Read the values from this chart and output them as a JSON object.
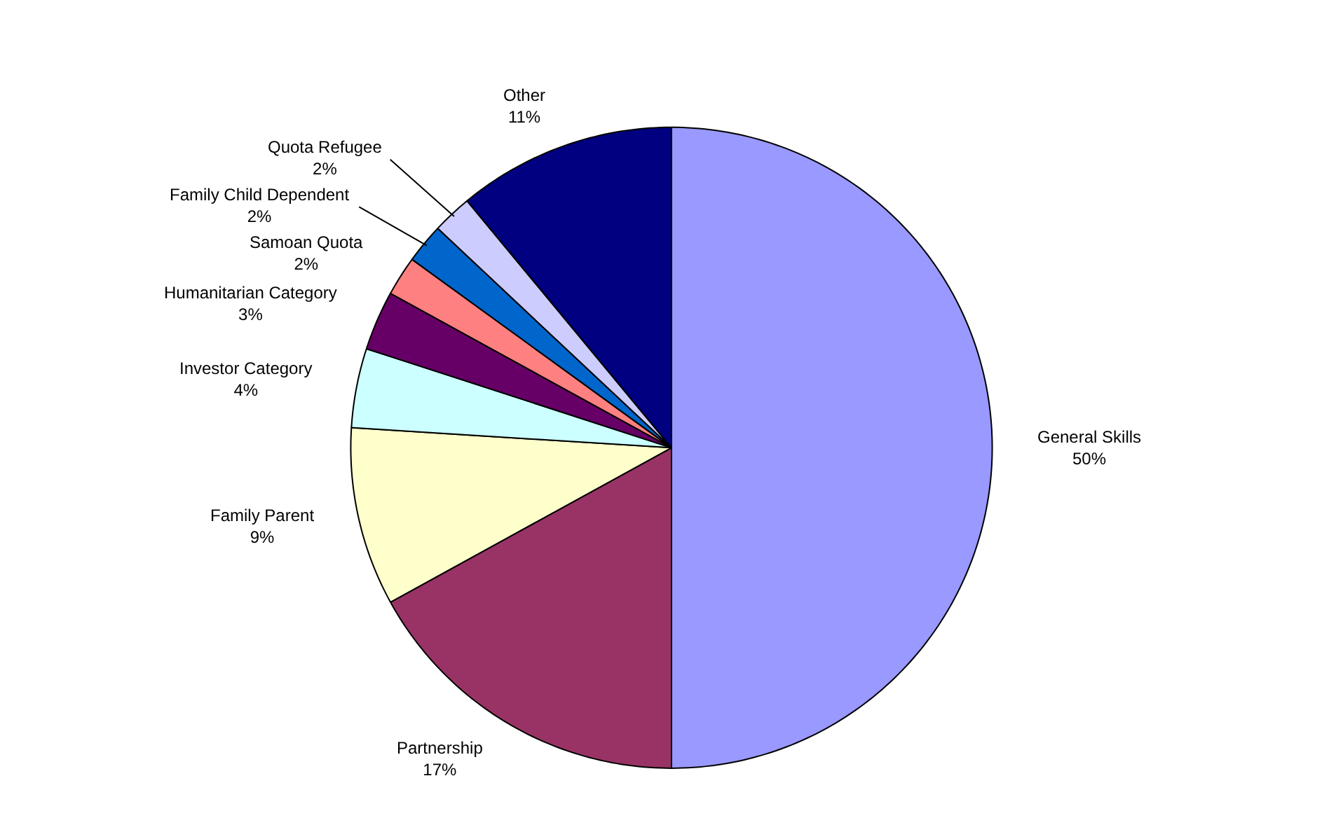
{
  "chart_data": {
    "type": "pie",
    "categories": [
      "General Skills",
      "Partnership",
      "Family Parent",
      "Investor Category",
      "Humanitarian Category",
      "Samoan Quota",
      "Family Child Dependent",
      "Quota Refugee",
      "Other"
    ],
    "values": [
      50,
      17,
      9,
      4,
      3,
      2,
      2,
      2,
      11
    ],
    "value_labels": [
      "50%",
      "17%",
      "9%",
      "4%",
      "3%",
      "2%",
      "2%",
      "2%",
      "11%"
    ],
    "colors": [
      "#9999ff",
      "#993366",
      "#ffffcc",
      "#ccffff",
      "#660066",
      "#ff8080",
      "#0066cc",
      "#ccccff",
      "#000080"
    ],
    "legend": false
  }
}
